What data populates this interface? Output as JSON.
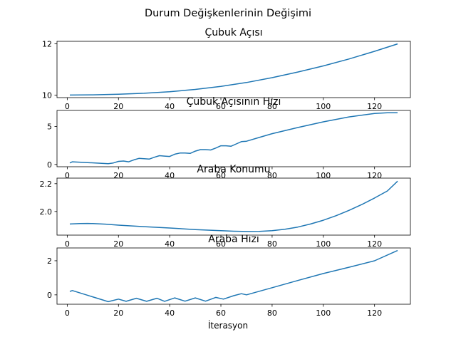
{
  "figure": {
    "suptitle": "Durum Değişkenlerinin Değişimi",
    "xlabel": "İterasyon",
    "line_color": "#1f77b4"
  },
  "chart_data": [
    {
      "type": "line",
      "title": "Çubuk Açısı",
      "xlim": [
        -4,
        134
      ],
      "ylim": [
        9.9,
        12.1
      ],
      "xticks": [
        0,
        20,
        40,
        60,
        80,
        100,
        120
      ],
      "yticks": [
        10,
        12
      ],
      "ytick_labels": [
        "10",
        "12"
      ],
      "x": [
        1,
        10,
        20,
        30,
        40,
        50,
        60,
        70,
        80,
        90,
        100,
        110,
        120,
        129
      ],
      "y": [
        10.0,
        10.01,
        10.03,
        10.07,
        10.13,
        10.22,
        10.34,
        10.49,
        10.68,
        10.9,
        11.14,
        11.41,
        11.71,
        12.0
      ]
    },
    {
      "type": "line",
      "title": "Çubuk Açısının Hızı",
      "xlim": [
        -4,
        134
      ],
      "ylim": [
        -0.3,
        7.1
      ],
      "xticks": [
        0,
        20,
        40,
        60,
        80,
        100,
        120
      ],
      "yticks": [
        0,
        5
      ],
      "ytick_labels": [
        "0",
        "5"
      ],
      "x": [
        1,
        2,
        16,
        18,
        20,
        22,
        24,
        26,
        28,
        30,
        32,
        34,
        36,
        38,
        40,
        42,
        44,
        46,
        48,
        50,
        52,
        54,
        56,
        58,
        60,
        62,
        64,
        66,
        68,
        70,
        75,
        80,
        90,
        100,
        110,
        120,
        125,
        129
      ],
      "y": [
        0.2,
        0.35,
        0.1,
        0.2,
        0.4,
        0.45,
        0.35,
        0.6,
        0.8,
        0.75,
        0.7,
        0.95,
        1.15,
        1.1,
        1.05,
        1.35,
        1.5,
        1.5,
        1.45,
        1.75,
        1.95,
        1.95,
        1.9,
        2.15,
        2.45,
        2.45,
        2.4,
        2.7,
        3.0,
        3.05,
        3.55,
        4.05,
        4.85,
        5.6,
        6.25,
        6.7,
        6.8,
        6.8
      ]
    },
    {
      "type": "line",
      "title": "Araba Konumu",
      "xlim": [
        -4,
        134
      ],
      "ylim": [
        1.83,
        2.24
      ],
      "xticks": [
        0,
        20,
        40,
        60,
        80,
        100,
        120
      ],
      "yticks": [
        2.0,
        2.2
      ],
      "ytick_labels": [
        "2.0",
        "2.2"
      ],
      "x": [
        1,
        5,
        8,
        10,
        15,
        20,
        30,
        40,
        50,
        60,
        65,
        70,
        75,
        80,
        85,
        90,
        95,
        100,
        105,
        110,
        115,
        120,
        125,
        129
      ],
      "y": [
        1.91,
        1.913,
        1.914,
        1.913,
        1.909,
        1.902,
        1.891,
        1.881,
        1.87,
        1.862,
        1.858,
        1.856,
        1.857,
        1.862,
        1.872,
        1.888,
        1.91,
        1.937,
        1.97,
        2.008,
        2.05,
        2.097,
        2.148,
        2.218
      ]
    },
    {
      "type": "line",
      "title": "Araba Hızı",
      "xlim": [
        -4,
        134
      ],
      "ylim": [
        -0.55,
        2.75
      ],
      "xticks": [
        0,
        20,
        40,
        60,
        80,
        100,
        120
      ],
      "yticks": [
        0,
        2
      ],
      "ytick_labels": [
        "0",
        "2"
      ],
      "x": [
        1,
        2,
        16,
        20,
        23,
        27,
        31,
        35,
        38,
        42,
        46,
        50,
        54,
        58,
        61,
        65,
        68,
        70,
        80,
        90,
        100,
        110,
        120,
        129
      ],
      "y": [
        0.2,
        0.25,
        -0.4,
        -0.25,
        -0.38,
        -0.2,
        -0.38,
        -0.2,
        -0.38,
        -0.18,
        -0.37,
        -0.18,
        -0.37,
        -0.15,
        -0.25,
        -0.05,
        0.07,
        0.0,
        0.42,
        0.84,
        1.25,
        1.62,
        2.0,
        2.6
      ]
    }
  ]
}
